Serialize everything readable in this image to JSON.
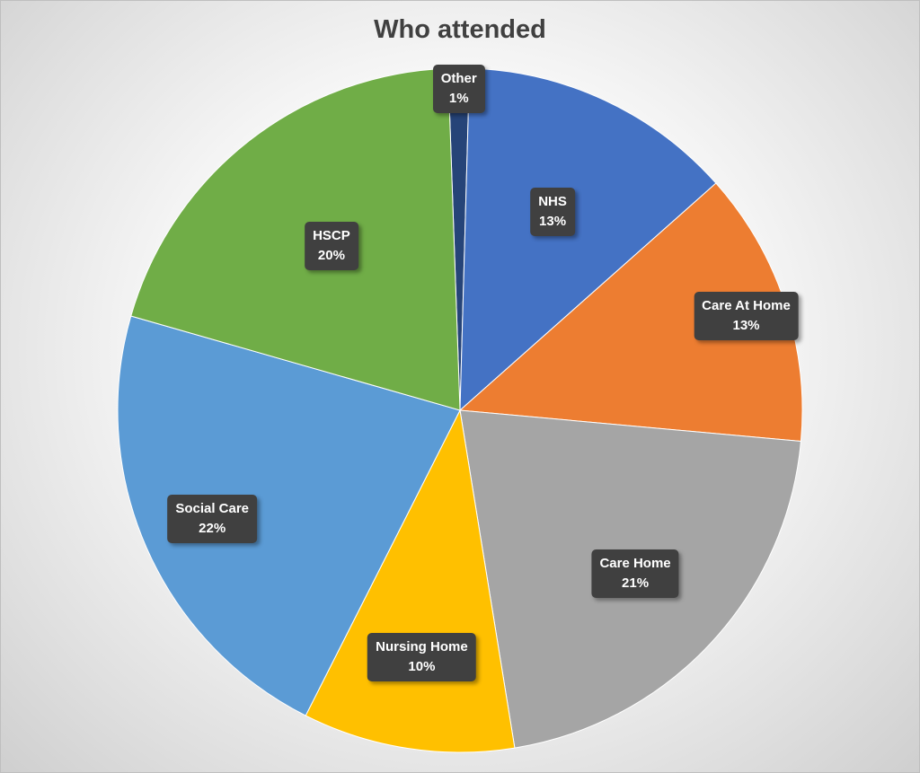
{
  "chart_data": {
    "type": "pie",
    "title": "Who attended",
    "slices": [
      {
        "label": "Other",
        "value": 1,
        "display": "1%",
        "color": "#264478"
      },
      {
        "label": "NHS",
        "value": 13,
        "display": "13%",
        "color": "#4472C4"
      },
      {
        "label": "Care At Home",
        "value": 13,
        "display": "13%",
        "color": "#ED7D31"
      },
      {
        "label": "Care Home",
        "value": 21,
        "display": "21%",
        "color": "#A5A5A5"
      },
      {
        "label": "Nursing Home",
        "value": 10,
        "display": "10%",
        "color": "#FFC000"
      },
      {
        "label": "Social Care",
        "value": 22,
        "display": "22%",
        "color": "#5B9BD5"
      },
      {
        "label": "HSCP",
        "value": 20,
        "display": "20%",
        "color": "#70AD47"
      }
    ],
    "legend": "none",
    "data_labels": "inside"
  }
}
